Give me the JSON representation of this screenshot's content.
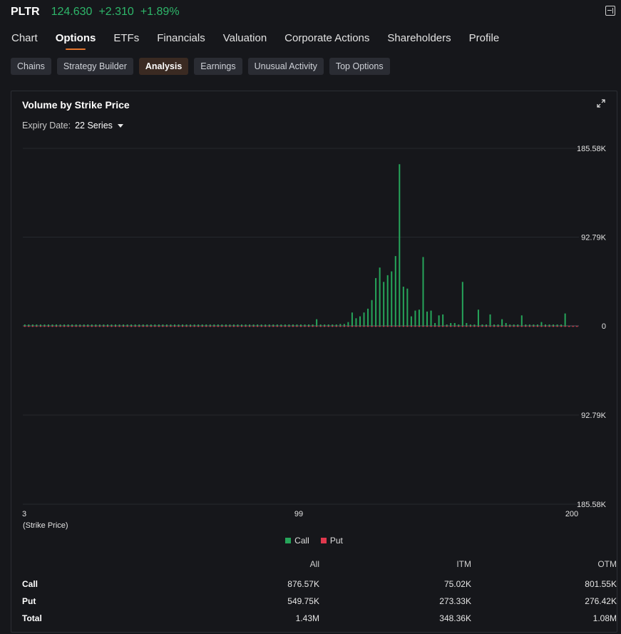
{
  "header": {
    "ticker": "PLTR",
    "price": "124.630",
    "change": "+2.310",
    "change_pct": "+1.89%",
    "up_color": "#2eb66a"
  },
  "nav": {
    "items": [
      "Chart",
      "Options",
      "ETFs",
      "Financials",
      "Valuation",
      "Corporate Actions",
      "Shareholders",
      "Profile"
    ],
    "active": "Options"
  },
  "subtabs": {
    "items": [
      "Chains",
      "Strategy Builder",
      "Analysis",
      "Earnings",
      "Unusual Activity",
      "Top Options"
    ],
    "active": "Analysis"
  },
  "panel": {
    "title": "Volume by Strike Price",
    "expiry_label": "Expiry Date:",
    "expiry_value": "22 Series"
  },
  "chart_data": {
    "type": "bar",
    "title": "Volume by Strike Price",
    "xlabel": "(Strike Price)",
    "x_ticks": [
      "3",
      "99",
      "200"
    ],
    "y_ticks": [
      "185.58K",
      "92.79K",
      "0",
      "92.79K",
      "185.58K"
    ],
    "ylim": [
      -185580,
      185580
    ],
    "grid": true,
    "legend_position": "bottom-center",
    "colors": {
      "call": "#26a55a",
      "put": "#e0384d"
    },
    "series": [
      {
        "name": "Call",
        "values": [
          1.5,
          1.5,
          1.5,
          1.5,
          1.5,
          1.5,
          1.5,
          1.5,
          1.5,
          1.5,
          1.5,
          1.5,
          1.5,
          1.5,
          1.5,
          1.5,
          1.5,
          1.5,
          1.5,
          1.5,
          1.5,
          1.5,
          1.5,
          1.5,
          1.5,
          1.5,
          1.5,
          1.5,
          1.5,
          1.5,
          1.5,
          1.5,
          1.5,
          1.5,
          1.5,
          1.5,
          1.5,
          1.5,
          1.5,
          1.5,
          1.5,
          1.5,
          1.5,
          1.5,
          1.5,
          1.5,
          1.5,
          1.5,
          1.5,
          1.5,
          1.5,
          1.5,
          1.5,
          1.5,
          1.5,
          1.5,
          1.5,
          1.5,
          1.5,
          1.5,
          1.5,
          1.5,
          1.5,
          1.5,
          1.5,
          1.5,
          1.5,
          1.5,
          1.5,
          1.5,
          1.5,
          1.5,
          1.5,
          1.5,
          7,
          1.5,
          1.5,
          1.5,
          1.5,
          1.5,
          2,
          2,
          4,
          14,
          8,
          10,
          14,
          18,
          27,
          50,
          61,
          46,
          53,
          57,
          73,
          169,
          41,
          39,
          10,
          16,
          17,
          72,
          15,
          16,
          3,
          11,
          12,
          1.5,
          3,
          3,
          1.5,
          46,
          3,
          1.5,
          1.5,
          17,
          1.5,
          1.5,
          12,
          1.5,
          1.5,
          7,
          3,
          1.5,
          1.5,
          1.5,
          11,
          1.5,
          1.5,
          1.5,
          1.5,
          4,
          1.5,
          1.5,
          1.5,
          1.5,
          1.5,
          13
        ]
      },
      {
        "name": "Put",
        "values": [
          1,
          1,
          1,
          1,
          1,
          1,
          1,
          1,
          1,
          1,
          1,
          1,
          1,
          1,
          1,
          1,
          1,
          1,
          1,
          1,
          1,
          1,
          1,
          1,
          1,
          1,
          1,
          1,
          1,
          1,
          1,
          1,
          1,
          1,
          1,
          1,
          1,
          1,
          1,
          1,
          1,
          1,
          1,
          1,
          1,
          1,
          1,
          1,
          1,
          1,
          1,
          1,
          1,
          1,
          1,
          1,
          1,
          1,
          1,
          1,
          1,
          1,
          1,
          1,
          1,
          1,
          1,
          1,
          1,
          1,
          1,
          1,
          1,
          1,
          1,
          1,
          1,
          1,
          1,
          1,
          1,
          1,
          1,
          1,
          1,
          1,
          1,
          1,
          1,
          1,
          1,
          1,
          1,
          1,
          1,
          1,
          1,
          1,
          1,
          1,
          1,
          1,
          1,
          1,
          1,
          1,
          1,
          1,
          1,
          1,
          1,
          1,
          1,
          1,
          1,
          1,
          1,
          1,
          1,
          1,
          1,
          1,
          1,
          1,
          1,
          1,
          1,
          1,
          1,
          1,
          1,
          1,
          1,
          1,
          1,
          1,
          1,
          1,
          1,
          1,
          1
        ]
      }
    ]
  },
  "legend": {
    "call": "Call",
    "put": "Put"
  },
  "summary": {
    "headers": [
      "All",
      "ITM",
      "OTM"
    ],
    "rows": [
      {
        "label": "Call",
        "all": "876.57K",
        "itm": "75.02K",
        "otm": "801.55K"
      },
      {
        "label": "Put",
        "all": "549.75K",
        "itm": "273.33K",
        "otm": "276.42K"
      },
      {
        "label": "Total",
        "all": "1.43M",
        "itm": "348.36K",
        "otm": "1.08M"
      }
    ]
  }
}
